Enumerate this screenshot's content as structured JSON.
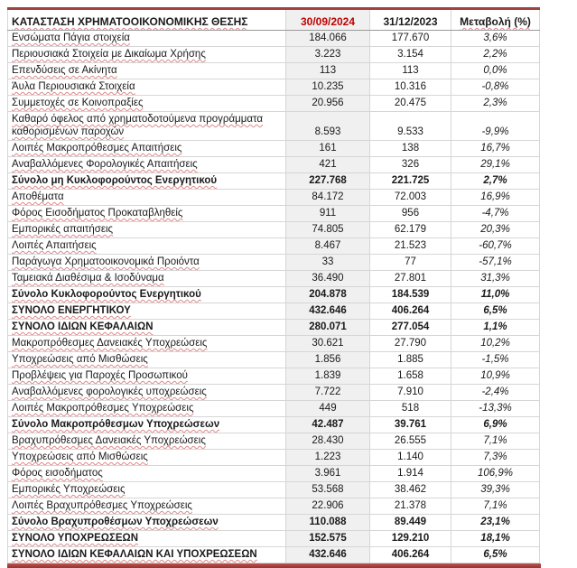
{
  "colors": {
    "accent_red": "#c00000",
    "rule_red": "#9e4340",
    "bar_red_light": "#c0504d",
    "bar_red_dark": "#8e3734",
    "column_shade": "#f0f0f0",
    "grid_gray": "#d6d6d6"
  },
  "table": {
    "header": {
      "title": "ΚΑΤΑΣΤΑΣΗ ΧΡΗΜΑΤΟΟΙΚΟΝΟΜΙΚΗΣ ΘΕΣΗΣ",
      "col_current": "30/09/2024",
      "col_previous": "31/12/2023",
      "col_change": "Μεταβολή (%)"
    },
    "rows": [
      {
        "label": "Ενσώματα Πάγια στοιχεία",
        "v1": "184.066",
        "v2": "177.670",
        "chg": "3,6%",
        "style": "normal"
      },
      {
        "label": "Περιουσιακά Στοιχεία με Δικαίωμα Χρήσης",
        "v1": "3.223",
        "v2": "3.154",
        "chg": "2,2%",
        "style": "normal"
      },
      {
        "label": "Επενδύσεις σε Ακίνητα",
        "v1": "113",
        "v2": "113",
        "chg": "0,0%",
        "style": "normal"
      },
      {
        "label": "Άυλα Περιουσιακά Στοιχεία",
        "v1": "10.235",
        "v2": "10.316",
        "chg": "-0,8%",
        "style": "normal"
      },
      {
        "label": "Συμμετοχές σε Κοινοπραξίες",
        "v1": "20.956",
        "v2": "20.475",
        "chg": "2,3%",
        "style": "normal"
      },
      {
        "label": "Καθαρό όφελος από χρηματοδοτούμενα προγράμματα καθορισμένων παροχών",
        "v1": "8.593",
        "v2": "9.533",
        "chg": "-9,9%",
        "style": "normal",
        "multiline": true
      },
      {
        "label": "Λοιπές Μακροπρόθεσμες Απαιτήσεις",
        "v1": "161",
        "v2": "138",
        "chg": "16,7%",
        "style": "normal"
      },
      {
        "label": "Αναβαλλόμενες Φορολογικές Απαιτήσεις",
        "v1": "421",
        "v2": "326",
        "chg": "29,1%",
        "style": "normal"
      },
      {
        "label": "Σύνολο μη Κυκλοφορούντος  Ενεργητικού",
        "v1": "227.768",
        "v2": "221.725",
        "chg": "2,7%",
        "style": "subtotal"
      },
      {
        "label": "Αποθέματα",
        "v1": "84.172",
        "v2": "72.003",
        "chg": "16,9%",
        "style": "normal"
      },
      {
        "label": "Φόρος Εισοδήματος Προκαταβληθείς",
        "v1": "911",
        "v2": "956",
        "chg": "-4,7%",
        "style": "normal"
      },
      {
        "label": "Εμπορικές απαιτήσεις",
        "v1": "74.805",
        "v2": "62.179",
        "chg": "20,3%",
        "style": "normal"
      },
      {
        "label": "Λοιπές Απαιτήσεις",
        "v1": "8.467",
        "v2": "21.523",
        "chg": "-60,7%",
        "style": "normal"
      },
      {
        "label": "Παράγωγα Χρηματοοικονομικά Προιόντα",
        "v1": "33",
        "v2": "77",
        "chg": "-57,1%",
        "style": "normal"
      },
      {
        "label": "Ταμειακά Διαθέσιμα & Ισοδύναμα",
        "v1": "36.490",
        "v2": "27.801",
        "chg": "31,3%",
        "style": "normal"
      },
      {
        "label": "Σύνολο Κυκλοφορούντος Ενεργητικού",
        "v1": "204.878",
        "v2": "184.539",
        "chg": "11,0%",
        "style": "subtotal"
      },
      {
        "label": "ΣΥΝΟΛΟ ΕΝΕΡΓΗΤΙΚΟΥ",
        "v1": "432.646",
        "v2": "406.264",
        "chg": "6,5%",
        "style": "total"
      },
      {
        "label": "ΣΥΝΟΛΟ ΙΔΙΩΝ ΚΕΦΑΛΑΙΩΝ",
        "v1": "280.071",
        "v2": "277.054",
        "chg": "1,1%",
        "style": "total"
      },
      {
        "label": "Μακροπρόθεσμες Δανειακές Υποχρεώσεις",
        "v1": "30.621",
        "v2": "27.790",
        "chg": "10,2%",
        "style": "normal"
      },
      {
        "label": "Υποχρεώσεις από Μισθώσεις",
        "v1": "1.856",
        "v2": "1.885",
        "chg": "-1,5%",
        "style": "normal"
      },
      {
        "label": "Προβλέψεις για Παροχές Προσωπικού",
        "v1": "1.839",
        "v2": "1.658",
        "chg": "10,9%",
        "style": "normal"
      },
      {
        "label": "Αναβαλλόμενες φορολογικές υποχρεώσεις",
        "v1": "7.722",
        "v2": "7.910",
        "chg": "-2,4%",
        "style": "normal"
      },
      {
        "label": "Λοιπές Μακροπρόθεσμες Υποχρεώσεις",
        "v1": "449",
        "v2": "518",
        "chg": "-13,3%",
        "style": "normal"
      },
      {
        "label": "Σύνολο Μακροπρόθεσμων Υποχρεώσεων",
        "v1": "42.487",
        "v2": "39.761",
        "chg": "6,9%",
        "style": "subtotal"
      },
      {
        "label": "Βραχυπρόθεσμες Δανειακές Υποχρεώσεις",
        "v1": "28.430",
        "v2": "26.555",
        "chg": "7,1%",
        "style": "normal"
      },
      {
        "label": "Υποχρεώσεις από Μισθώσεις",
        "v1": "1.223",
        "v2": "1.140",
        "chg": "7,3%",
        "style": "normal"
      },
      {
        "label": "Φόρος εισοδήματος",
        "v1": "3.961",
        "v2": "1.914",
        "chg": "106,9%",
        "style": "normal"
      },
      {
        "label": "Εμπορικές Υποχρεώσεις",
        "v1": "53.568",
        "v2": "38.462",
        "chg": "39,3%",
        "style": "normal"
      },
      {
        "label": "Λοιπές Βραχυπρόθεσμες Υποχρεώσεις",
        "v1": "22.906",
        "v2": "21.378",
        "chg": "7,1%",
        "style": "normal"
      },
      {
        "label": "Σύνολο Βραχυπροθέσμων Υποχρεώσεων",
        "v1": "110.088",
        "v2": "89.449",
        "chg": "23,1%",
        "style": "subtotal"
      },
      {
        "label": "ΣΥΝΟΛΟ ΥΠΟΧΡΕΩΣΕΩΝ",
        "v1": "152.575",
        "v2": "129.210",
        "chg": "18,1%",
        "style": "total"
      },
      {
        "label": "ΣΥΝΟΛΟ ΙΔΙΩΝ ΚΕΦΑΛΑΙΩΝ ΚΑΙ ΥΠΟΧΡΕΩΣΕΩΝ",
        "v1": "432.646",
        "v2": "406.264",
        "chg": "6,5%",
        "style": "total"
      }
    ]
  }
}
